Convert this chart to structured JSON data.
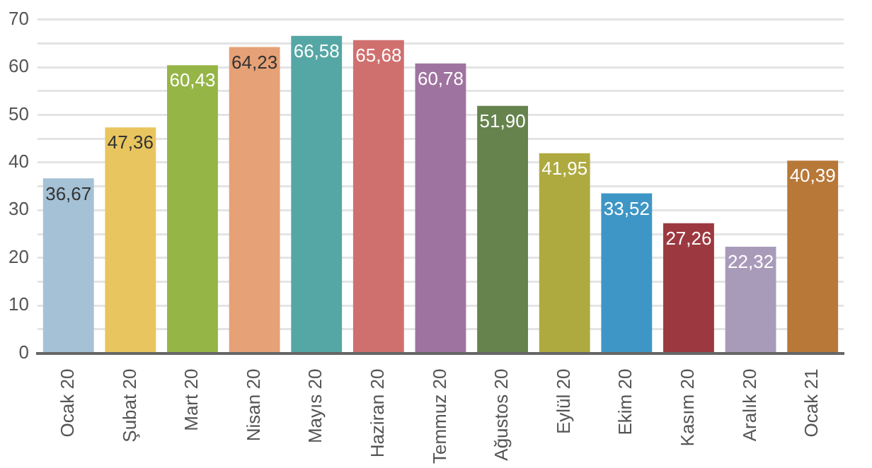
{
  "chart_data": {
    "type": "bar",
    "categories": [
      "Ocak 20",
      "Şubat 20",
      "Mart 20",
      "Nisan 20",
      "Mayıs 20",
      "Haziran 20",
      "Temmuz 20",
      "Ağustos 20",
      "Eylül 20",
      "Ekim 20",
      "Kasım 20",
      "Aralık 20",
      "Ocak 21"
    ],
    "values": [
      36.67,
      47.36,
      60.43,
      64.23,
      66.58,
      65.68,
      60.78,
      51.9,
      41.95,
      33.52,
      27.26,
      22.32,
      40.39
    ],
    "value_labels": [
      "36,67",
      "47,36",
      "60,43",
      "64,23",
      "66,58",
      "65,68",
      "60,78",
      "51,90",
      "41,95",
      "33,52",
      "27,26",
      "22,32",
      "40,39"
    ],
    "colors": [
      "#a5c1d6",
      "#e8c55e",
      "#96b547",
      "#e6a177",
      "#55a7a5",
      "#cf706f",
      "#9f73a0",
      "#66834d",
      "#aeaa40",
      "#3e96c6",
      "#9c3940",
      "#a89bba",
      "#b87838"
    ],
    "ylim": [
      0,
      70
    ],
    "yticks": [
      0,
      {
        "value": 5,
        "label": null
      },
      10,
      {
        "value": 15,
        "label": null
      },
      20,
      {
        "value": 25,
        "label": null
      },
      30,
      {
        "value": 35,
        "label": null
      },
      40,
      {
        "value": 45,
        "label": null
      },
      50,
      {
        "value": 55,
        "label": null
      },
      60,
      {
        "value": 65,
        "label": null
      },
      70
    ],
    "grid": "y",
    "legend": false
  }
}
